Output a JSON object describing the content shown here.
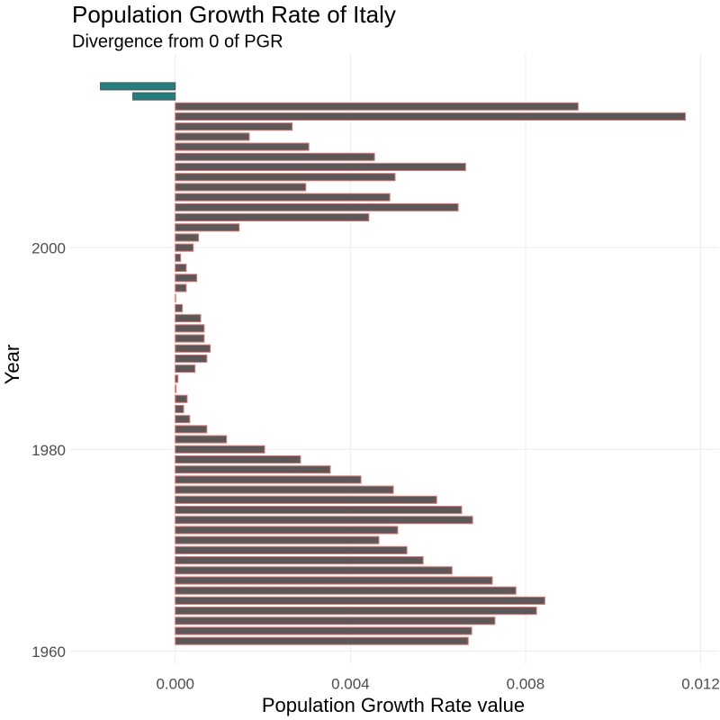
{
  "chart_data": {
    "type": "bar",
    "orientation": "horizontal",
    "title": "Population Growth Rate of Italy",
    "subtitle": "Divergence from 0 of PGR",
    "x_label": "Population Growth Rate value",
    "y_label": "Year",
    "categories": [
      1961,
      1962,
      1963,
      1964,
      1965,
      1966,
      1967,
      1968,
      1969,
      1970,
      1971,
      1972,
      1973,
      1974,
      1975,
      1976,
      1977,
      1978,
      1979,
      1980,
      1981,
      1982,
      1983,
      1984,
      1985,
      1986,
      1987,
      1988,
      1989,
      1990,
      1991,
      1992,
      1993,
      1994,
      1995,
      1996,
      1997,
      1998,
      1999,
      2000,
      2001,
      2002,
      2003,
      2004,
      2005,
      2006,
      2007,
      2008,
      2009,
      2010,
      2011,
      2012,
      2013,
      2014,
      2015,
      2016
    ],
    "values": [
      0.00669,
      0.00677,
      0.0073,
      0.00825,
      0.00844,
      0.00778,
      0.00724,
      0.00632,
      0.00566,
      0.00529,
      0.00465,
      0.00508,
      0.00679,
      0.00654,
      0.00597,
      0.00498,
      0.00424,
      0.00354,
      0.00286,
      0.00204,
      0.00117,
      0.00072,
      0.00033,
      0.00019,
      0.00027,
      2e-05,
      6e-05,
      0.00045,
      0.00072,
      0.0008,
      0.00066,
      0.00066,
      0.00058,
      0.00016,
      1e-05,
      0.00025,
      0.00049,
      0.00025,
      0.00012,
      0.00041,
      0.00053,
      0.00146,
      0.00442,
      0.00646,
      0.0049,
      0.00298,
      0.00502,
      0.00663,
      0.00455,
      0.00305,
      0.00169,
      0.00267,
      0.01165,
      0.0092,
      -0.00097,
      -0.00171
    ],
    "positive_color": "#595959",
    "positive_outline": "#e8716a",
    "negative_color": "#21807f",
    "negative_outline": "#555555",
    "xlim": [
      -0.0024,
      0.0124
    ],
    "xticks": [
      {
        "value": 0,
        "label": "0.000"
      },
      {
        "value": 0.004,
        "label": "0.004"
      },
      {
        "value": 0.008,
        "label": "0.008"
      },
      {
        "value": 0.012,
        "label": "0.012"
      }
    ],
    "ylim": [
      1958.7,
      2019.2
    ],
    "yticks": [
      1960,
      1980,
      2000
    ],
    "grid": true
  }
}
